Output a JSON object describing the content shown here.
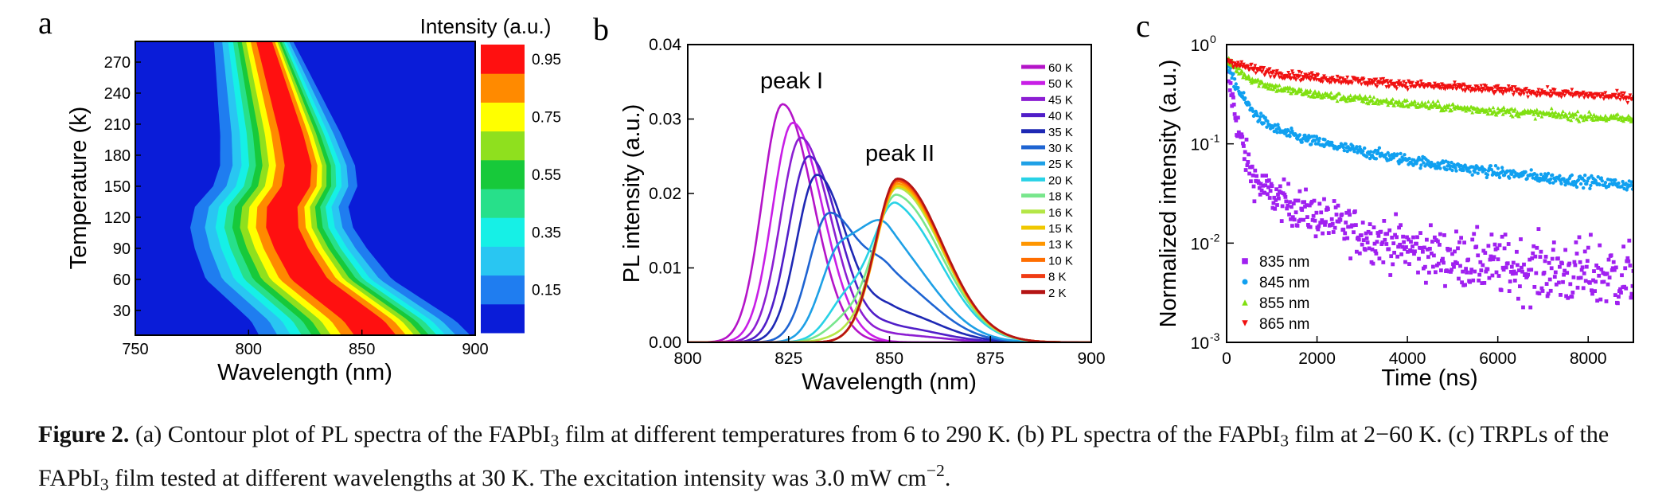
{
  "chart_data": [
    {
      "type": "heatmap",
      "panel_label": "a",
      "xlabel": "Wavelength (nm)",
      "ylabel": "Temperature (k)",
      "xlim": [
        750,
        900
      ],
      "ylim": [
        6,
        290
      ],
      "x_ticks": [
        "750",
        "800",
        "850",
        "900"
      ],
      "y_ticks": [
        "30",
        "60",
        "90",
        "120",
        "150",
        "180",
        "210",
        "240",
        "270"
      ],
      "colorbar_title": "Intensity (a.u.)",
      "colorbar_ticks": [
        "0.15",
        "0.35",
        "0.55",
        "0.75",
        "0.95"
      ],
      "levels": [
        {
          "range": [
            0.0,
            0.1
          ],
          "color": "#0a1cd8"
        },
        {
          "range": [
            0.1,
            0.2
          ],
          "color": "#1f7df0"
        },
        {
          "range": [
            0.2,
            0.3
          ],
          "color": "#29c6f2"
        },
        {
          "range": [
            0.3,
            0.4
          ],
          "color": "#16f0e6"
        },
        {
          "range": [
            0.4,
            0.5
          ],
          "color": "#27e08a"
        },
        {
          "range": [
            0.5,
            0.6
          ],
          "color": "#17c93a"
        },
        {
          "range": [
            0.6,
            0.7
          ],
          "color": "#8fe01e"
        },
        {
          "range": [
            0.7,
            0.8
          ],
          "color": "#ffff00"
        },
        {
          "range": [
            0.8,
            0.9
          ],
          "color": "#ff8a00"
        },
        {
          "range": [
            0.9,
            1.0
          ],
          "color": "#ff1010"
        }
      ],
      "peak_center_nm": [
        {
          "T": 6,
          "center": 857
        },
        {
          "T": 20,
          "center": 852
        },
        {
          "T": 40,
          "center": 840
        },
        {
          "T": 60,
          "center": 828
        },
        {
          "T": 90,
          "center": 820
        },
        {
          "T": 110,
          "center": 816
        },
        {
          "T": 130,
          "center": 816
        },
        {
          "T": 150,
          "center": 822
        },
        {
          "T": 170,
          "center": 823
        },
        {
          "T": 200,
          "center": 820
        },
        {
          "T": 230,
          "center": 816
        },
        {
          "T": 260,
          "center": 812
        },
        {
          "T": 290,
          "center": 808
        }
      ]
    },
    {
      "type": "line",
      "panel_label": "b",
      "xlabel": "Wavelength (nm)",
      "ylabel": "PL intensity (a.u.)",
      "xlim": [
        800,
        900
      ],
      "ylim": [
        0,
        0.04
      ],
      "x_ticks": [
        "800",
        "825",
        "850",
        "875",
        "900"
      ],
      "y_ticks": [
        "0.00",
        "0.01",
        "0.02",
        "0.03",
        "0.04"
      ],
      "annotations": [
        "peak I",
        "peak II"
      ],
      "series": [
        {
          "name": "60 K",
          "color": "#b414c8",
          "peak1": {
            "x": 823.5,
            "y": 0.032
          },
          "peak2": {
            "x": 851,
            "y": 0.0
          }
        },
        {
          "name": "50 K",
          "color": "#c81ee6",
          "peak1": {
            "x": 826,
            "y": 0.0295
          },
          "peak2": {
            "x": 851,
            "y": 0.0
          }
        },
        {
          "name": "45 K",
          "color": "#8c1ed2",
          "peak1": {
            "x": 828,
            "y": 0.0275
          },
          "peak2": {
            "x": 851,
            "y": 0.001
          }
        },
        {
          "name": "40 K",
          "color": "#501ec8",
          "peak1": {
            "x": 830,
            "y": 0.025
          },
          "peak2": {
            "x": 851,
            "y": 0.002
          }
        },
        {
          "name": "35 K",
          "color": "#1e28b4",
          "peak1": {
            "x": 832,
            "y": 0.0225
          },
          "peak2": {
            "x": 851,
            "y": 0.004
          }
        },
        {
          "name": "30 K",
          "color": "#1e64d2",
          "peak1": {
            "x": 835,
            "y": 0.0172
          },
          "peak2": {
            "x": 850,
            "y": 0.008
          }
        },
        {
          "name": "25 K",
          "color": "#1ea0e6",
          "peak1": {
            "x": 838,
            "y": 0.0125
          },
          "peak2": {
            "x": 850,
            "y": 0.012
          }
        },
        {
          "name": "20 K",
          "color": "#28d2e6",
          "peak1": {
            "x": 840,
            "y": 0.006
          },
          "peak2": {
            "x": 852,
            "y": 0.017
          }
        },
        {
          "name": "18 K",
          "color": "#78e68c",
          "peak1": {
            "x": 840,
            "y": 0.003
          },
          "peak2": {
            "x": 852,
            "y": 0.019
          }
        },
        {
          "name": "16 K",
          "color": "#b4e646",
          "peak1": {
            "x": 840,
            "y": 0.001
          },
          "peak2": {
            "x": 852,
            "y": 0.0205
          }
        },
        {
          "name": "15 K",
          "color": "#f0c800",
          "peak1": {
            "x": 840,
            "y": 0.0
          },
          "peak2": {
            "x": 852,
            "y": 0.021
          }
        },
        {
          "name": "13 K",
          "color": "#ff9600",
          "peak1": {
            "x": 840,
            "y": 0.0
          },
          "peak2": {
            "x": 852,
            "y": 0.0213
          }
        },
        {
          "name": "10 K",
          "color": "#ff6e00",
          "peak1": {
            "x": 840,
            "y": 0.0
          },
          "peak2": {
            "x": 852,
            "y": 0.0216
          }
        },
        {
          "name": "8 K",
          "color": "#f03c14",
          "peak1": {
            "x": 840,
            "y": 0.0
          },
          "peak2": {
            "x": 852,
            "y": 0.0218
          }
        },
        {
          "name": "2 K",
          "color": "#b41414",
          "peak1": {
            "x": 840,
            "y": 0.0
          },
          "peak2": {
            "x": 852,
            "y": 0.022
          }
        }
      ]
    },
    {
      "type": "scatter",
      "panel_label": "c",
      "xlabel": "Time (ns)",
      "ylabel": "Normalized intensity (a.u.)",
      "xlim": [
        0,
        9000
      ],
      "ylim": [
        0.001,
        1
      ],
      "y_scale": "log",
      "x_ticks": [
        "0",
        "2000",
        "4000",
        "6000",
        "8000"
      ],
      "y_ticks": [
        {
          "base": "10",
          "exp": "0"
        },
        {
          "base": "10",
          "exp": "-1"
        },
        {
          "base": "10",
          "exp": "-2"
        },
        {
          "base": "10",
          "exp": "-3"
        }
      ],
      "legend_position": "lower-left",
      "series": [
        {
          "name": "835 nm",
          "color": "#a020f0",
          "marker": "square",
          "decay": {
            "a1": 0.55,
            "t1": 150,
            "a2": 0.045,
            "t2": 1600,
            "a3": 0.006,
            "t3": 30000
          },
          "noise": 0.12
        },
        {
          "name": "845 nm",
          "color": "#10a0f0",
          "marker": "circle",
          "decay": {
            "a1": 0.45,
            "t1": 300,
            "a2": 0.12,
            "t2": 2500,
            "a3": 0.055,
            "t3": 20000
          },
          "noise": 0.04
        },
        {
          "name": "855 nm",
          "color": "#80e010",
          "marker": "triangle-up",
          "decay": {
            "a1": 0.3,
            "t1": 400,
            "a2": 0.15,
            "t2": 3000,
            "a3": 0.26,
            "t3": 21000
          },
          "noise": 0.03
        },
        {
          "name": "865 nm",
          "color": "#f01010",
          "marker": "triangle-down",
          "decay": {
            "a1": 0.15,
            "t1": 500,
            "a2": 0.1,
            "t2": 3000,
            "a3": 0.45,
            "t3": 20000
          },
          "noise": 0.03
        }
      ]
    }
  ],
  "caption": {
    "label": "Figure 2.",
    "part1": " (a) Contour plot of PL spectra of the FAPbI",
    "sub1": "3",
    "part2": " film at different temperatures from 6 to 290 K. (b) PL spectra of the FAPbI",
    "sub2": "3",
    "part3": " film at 2−60 K. (c) TRPLs of the FAPbI",
    "sub3": "3",
    "part4": " film tested at different wavelengths at 30 K. The excitation intensity was 3.0 mW cm",
    "sup1": "−2",
    "part5": "."
  }
}
